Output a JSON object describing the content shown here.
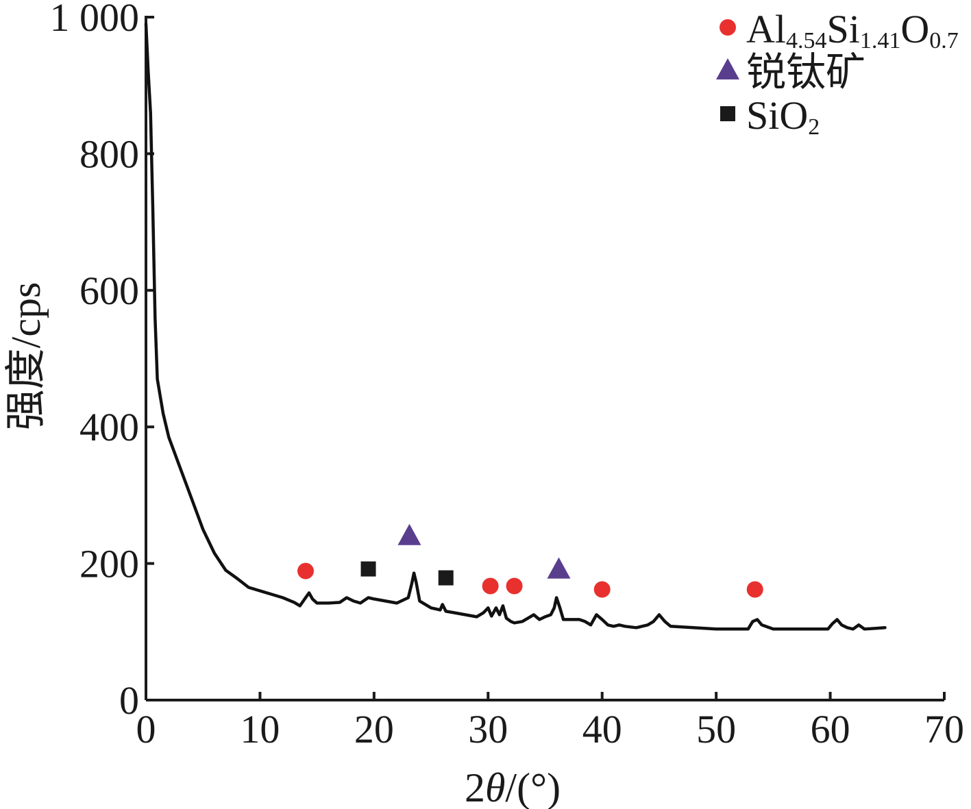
{
  "chart_data": {
    "type": "line",
    "title": "",
    "xlabel": "2θ/(°)",
    "xlabel_theta_parts": [
      "2",
      "θ",
      "/(°)"
    ],
    "ylabel": "强度/cps",
    "xlim": [
      0,
      70
    ],
    "ylim": [
      0,
      1000
    ],
    "x_ticks": [
      0,
      10,
      20,
      30,
      40,
      50,
      60,
      70
    ],
    "x_tick_labels": [
      "0",
      "10",
      "20",
      "30",
      "40",
      "50",
      "60",
      "70"
    ],
    "y_ticks": [
      0,
      200,
      400,
      600,
      800,
      1000
    ],
    "y_tick_labels": [
      "0",
      "200",
      "400",
      "600",
      "800",
      "1 000"
    ],
    "grid": false,
    "legend_position": "top-right",
    "legend": [
      {
        "marker": "circle",
        "color": "#e8312f",
        "label": "Al4.54Si1.41O0.7",
        "label_parts": [
          {
            "t": "Al",
            "sub": false
          },
          {
            "t": "4.54",
            "sub": true
          },
          {
            "t": "Si",
            "sub": false
          },
          {
            "t": "1.41",
            "sub": true
          },
          {
            "t": "O",
            "sub": false
          },
          {
            "t": "0.7",
            "sub": true
          }
        ]
      },
      {
        "marker": "triangle",
        "color": "#5a3e8e",
        "label": "锐钛矿",
        "label_parts": [
          {
            "t": "锐钛矿",
            "sub": false
          }
        ]
      },
      {
        "marker": "square",
        "color": "#1a1a1a",
        "label": "SiO2",
        "label_parts": [
          {
            "t": "SiO",
            "sub": false
          },
          {
            "t": "2",
            "sub": true
          }
        ]
      }
    ],
    "series": [
      {
        "line_color": "#111111",
        "x": [
          0.0,
          0.2,
          0.4,
          0.6,
          0.8,
          1.0,
          1.5,
          2.0,
          3.0,
          4.0,
          5.0,
          6.0,
          7.0,
          8.0,
          9.0,
          10.0,
          11.0,
          12.0,
          13.0,
          13.5,
          14.0,
          14.3,
          14.6,
          15.0,
          16.0,
          17.0,
          17.6,
          18.2,
          18.8,
          19.5,
          20.0,
          21.0,
          22.0,
          23.0,
          23.3,
          23.5,
          23.7,
          24.0,
          25.0,
          25.8,
          26.0,
          26.3,
          27.0,
          28.0,
          29.0,
          29.6,
          30.0,
          30.3,
          30.7,
          31.0,
          31.3,
          31.6,
          32.0,
          32.3,
          33.0,
          33.5,
          34.0,
          34.5,
          35.0,
          35.5,
          35.8,
          36.0,
          36.3,
          36.6,
          37.0,
          38.0,
          38.5,
          39.0,
          39.5,
          40.0,
          40.5,
          41.0,
          41.5,
          42.0,
          43.0,
          44.0,
          44.5,
          45.0,
          45.5,
          46.0,
          47.0,
          48.0,
          49.0,
          50.0,
          51.0,
          52.0,
          52.8,
          53.2,
          53.6,
          54.0,
          55.0,
          56.0,
          57.0,
          58.0,
          59.0,
          59.8,
          60.2,
          60.6,
          61.0,
          61.5,
          62.0,
          62.5,
          63.0,
          64.0,
          64.8
        ],
        "y": [
          990,
          920,
          860,
          720,
          560,
          470,
          420,
          385,
          340,
          295,
          250,
          215,
          190,
          178,
          165,
          160,
          155,
          150,
          143,
          138,
          150,
          157,
          148,
          142,
          142,
          143,
          150,
          145,
          142,
          150,
          148,
          145,
          142,
          150,
          170,
          186,
          172,
          145,
          135,
          132,
          140,
          130,
          128,
          125,
          122,
          128,
          135,
          123,
          135,
          125,
          138,
          120,
          115,
          113,
          115,
          120,
          125,
          118,
          122,
          125,
          135,
          150,
          135,
          118,
          118,
          118,
          115,
          110,
          125,
          118,
          110,
          108,
          110,
          108,
          106,
          110,
          115,
          125,
          115,
          108,
          107,
          106,
          105,
          104,
          104,
          104,
          104,
          115,
          118,
          110,
          104,
          104,
          104,
          104,
          104,
          104,
          112,
          118,
          110,
          106,
          104,
          110,
          104,
          105,
          106
        ]
      }
    ],
    "markers": [
      {
        "phase": "Al4.54Si1.41O0.7",
        "shape": "circle",
        "x": 14.0,
        "y": 189
      },
      {
        "phase": "SiO2",
        "shape": "square",
        "x": 19.5,
        "y": 192
      },
      {
        "phase": "锐钛矿",
        "shape": "triangle",
        "x": 23.1,
        "y": 240
      },
      {
        "phase": "SiO2",
        "shape": "square",
        "x": 26.3,
        "y": 179
      },
      {
        "phase": "Al4.54Si1.41O0.7",
        "shape": "circle",
        "x": 30.2,
        "y": 167
      },
      {
        "phase": "Al4.54Si1.41O0.7",
        "shape": "circle",
        "x": 32.3,
        "y": 167
      },
      {
        "phase": "锐钛矿",
        "shape": "triangle",
        "x": 36.2,
        "y": 191
      },
      {
        "phase": "Al4.54Si1.41O0.7",
        "shape": "circle",
        "x": 40.0,
        "y": 162
      },
      {
        "phase": "Al4.54Si1.41O0.7",
        "shape": "circle",
        "x": 53.4,
        "y": 162
      }
    ]
  }
}
